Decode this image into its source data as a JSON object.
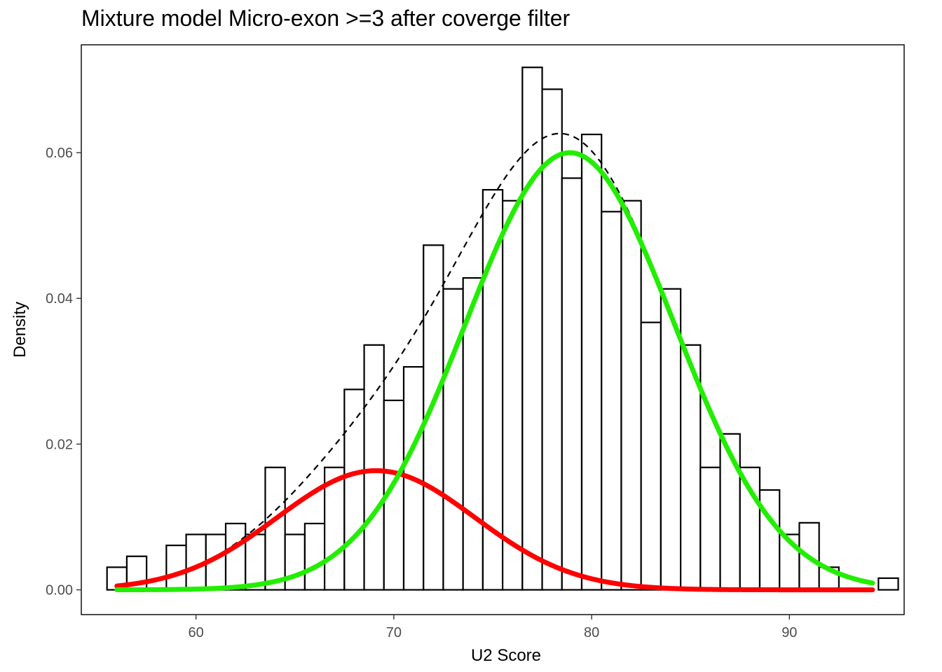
{
  "chart_data": {
    "type": "bar",
    "title": "Mixture model Micro-exon >=3 after coverge filter",
    "xlabel": "U2 Score",
    "ylabel": "Density",
    "xlim": [
      54.2,
      95.8
    ],
    "ylim": [
      -0.0034,
      0.0748
    ],
    "x_ticks": [
      {
        "value": 60,
        "label": "60"
      },
      {
        "value": 70,
        "label": "70"
      },
      {
        "value": 80,
        "label": "80"
      },
      {
        "value": 90,
        "label": "90"
      }
    ],
    "y_ticks": [
      {
        "value": 0.0,
        "label": "0.00"
      },
      {
        "value": 0.02,
        "label": "0.02"
      },
      {
        "value": 0.04,
        "label": "0.04"
      },
      {
        "value": 0.06,
        "label": "0.06"
      }
    ],
    "grid": false,
    "histogram": {
      "bin_width": 1.0,
      "first_bin_start": 55.5,
      "densities": [
        0.0031,
        0.0046,
        0.0,
        0.0061,
        0.0076,
        0.0076,
        0.0091,
        0.0076,
        0.0168,
        0.0076,
        0.0091,
        0.0168,
        0.0275,
        0.0336,
        0.026,
        0.0306,
        0.0473,
        0.0413,
        0.0428,
        0.0549,
        0.0534,
        0.0717,
        0.0687,
        0.0565,
        0.0625,
        0.0519,
        0.0534,
        0.0367,
        0.0413,
        0.0336,
        0.0168,
        0.0214,
        0.0168,
        0.0137,
        0.0076,
        0.0092,
        0.0031,
        0.0,
        0.0,
        0.0016
      ],
      "fill": "#ffffff",
      "stroke": "#000000"
    },
    "series": [
      {
        "kind": "density",
        "component": "low",
        "mean": 69.1,
        "sd": 5.0,
        "weight": 0.205,
        "color": "#ff0000",
        "style": "solid",
        "x_range": [
          56.0,
          94.2
        ]
      },
      {
        "kind": "density",
        "component": "high",
        "mean": 78.9,
        "sd": 5.3,
        "weight": 0.797,
        "color": "#22ee00",
        "style": "solid",
        "x_range": [
          56.0,
          94.2
        ]
      },
      {
        "kind": "density",
        "component": "mixture",
        "color": "#000000",
        "style": "dashed",
        "x_range": [
          56.0,
          94.2
        ]
      }
    ]
  }
}
